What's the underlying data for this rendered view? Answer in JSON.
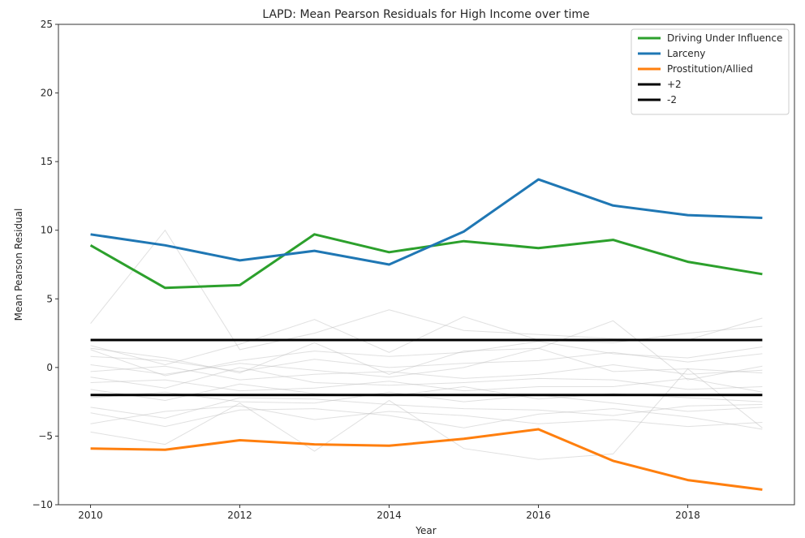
{
  "chart_data": {
    "type": "line",
    "title": "LAPD: Mean Pearson Residuals for High Income over time",
    "xlabel": "Year",
    "ylabel": "Mean Pearson Residual",
    "x": [
      2010,
      2011,
      2012,
      2013,
      2014,
      2015,
      2016,
      2017,
      2018,
      2019
    ],
    "xlim": [
      2009.57,
      2019.43
    ],
    "ylim": [
      -10,
      25
    ],
    "xticks": [
      "2010",
      "2012",
      "2014",
      "2016",
      "2018"
    ],
    "yticks": [
      "−10",
      "−5",
      "0",
      "5",
      "10",
      "15",
      "20",
      "25"
    ],
    "grid": false,
    "legend_position": "upper-right",
    "series": [
      {
        "name": "Driving Under Influence",
        "color": "#2ca02c",
        "values": [
          8.9,
          5.8,
          6.0,
          9.7,
          8.4,
          9.2,
          8.7,
          9.3,
          7.7,
          6.8
        ]
      },
      {
        "name": "Larceny",
        "color": "#1f77b4",
        "values": [
          9.7,
          8.9,
          7.8,
          8.5,
          7.5,
          9.9,
          13.7,
          11.8,
          11.1,
          10.9
        ]
      },
      {
        "name": "Prostitution/Allied",
        "color": "#ff7f0e",
        "values": [
          -5.9,
          -6.0,
          -5.3,
          -5.6,
          -5.7,
          -5.2,
          -4.5,
          -6.8,
          -8.2,
          -8.9
        ]
      },
      {
        "name": "+2",
        "color": "#000000",
        "values": [
          2,
          2,
          2,
          2,
          2,
          2,
          2,
          2,
          2,
          2
        ]
      },
      {
        "name": "-2",
        "color": "#000000",
        "values": [
          -2,
          -2,
          -2,
          -2,
          -2,
          -2,
          -2,
          -2,
          -2,
          -2
        ]
      }
    ],
    "background_series_color": "#bbbbbb",
    "background_series": [
      [
        3.2,
        10.0,
        1.3,
        2.5,
        4.2,
        2.7,
        2.4,
        2.1,
        2.0,
        3.6
      ],
      [
        1.6,
        0.2,
        1.7,
        3.5,
        1.1,
        3.7,
        2.0,
        1.8,
        2.5,
        3.0
      ],
      [
        1.3,
        -0.6,
        0.5,
        1.2,
        0.8,
        1.1,
        1.9,
        1.0,
        0.7,
        1.5
      ],
      [
        0.8,
        0.5,
        -0.3,
        0.6,
        0.0,
        0.3,
        0.5,
        1.1,
        0.4,
        1.0
      ],
      [
        0.2,
        -0.5,
        0.3,
        -0.2,
        -0.7,
        0.0,
        1.4,
        -0.3,
        -0.1,
        -0.4
      ],
      [
        -0.3,
        0.1,
        -0.9,
        -0.5,
        -0.3,
        -0.8,
        -0.5,
        0.2,
        -0.5,
        -0.2
      ],
      [
        -0.7,
        -1.5,
        0.0,
        -1.1,
        -1.3,
        -1.1,
        -0.8,
        -0.9,
        -1.6,
        -1.4
      ],
      [
        -1.1,
        -0.9,
        -1.7,
        -1.5,
        -1.0,
        -1.7,
        -1.4,
        -1.4,
        -0.8,
        -1.8
      ],
      [
        -1.6,
        -2.4,
        -1.2,
        -1.9,
        -2.1,
        -1.4,
        -2.3,
        -1.9,
        -2.2,
        -2.5
      ],
      [
        -2.2,
        -1.8,
        -2.5,
        -2.6,
        -1.8,
        -2.5,
        -2.0,
        -2.6,
        -3.2,
        -2.9
      ],
      [
        -2.9,
        -3.7,
        -2.2,
        -2.3,
        -2.7,
        -3.0,
        -3.1,
        -3.5,
        -2.8,
        -2.7
      ],
      [
        -3.3,
        -4.3,
        -3.1,
        -3.0,
        -3.5,
        -4.4,
        -3.4,
        -3.0,
        -3.6,
        -4.5
      ],
      [
        -4.1,
        -3.2,
        -2.8,
        -3.8,
        -3.2,
        -3.5,
        -4.1,
        -3.8,
        -4.3,
        -4.0
      ],
      [
        -4.7,
        -5.6,
        -2.6,
        -6.1,
        -2.4,
        -5.9,
        -6.7,
        -6.3,
        -0.1,
        -4.4
      ],
      [
        1.4,
        0.7,
        -0.4,
        1.8,
        -0.5,
        1.2,
        1.4,
        3.4,
        -0.9,
        0.1
      ]
    ]
  }
}
